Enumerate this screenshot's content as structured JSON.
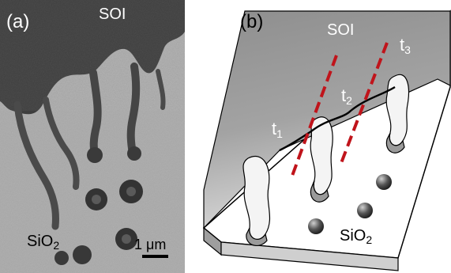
{
  "panel_a": {
    "label": "(a)",
    "top_material": "SOI",
    "bottom_material": "SiO",
    "bottom_material_sub": "2",
    "scalebar_num": "1",
    "scalebar_unit": " μm"
  },
  "panel_b": {
    "label": "(b)",
    "top_material": "SOI",
    "bottom_material": "SiO",
    "bottom_material_sub": "2",
    "t1": "t",
    "t1_sub": "1",
    "t2": "t",
    "t2_sub": "2",
    "t3": "t",
    "t3_sub": "3"
  },
  "colors": {
    "soi_micrograph": "#3f3f3f",
    "sio2_micrograph": "#a7a7a7",
    "soi_slab": "#8a8a8a",
    "dashed_line": "#c0141b"
  }
}
